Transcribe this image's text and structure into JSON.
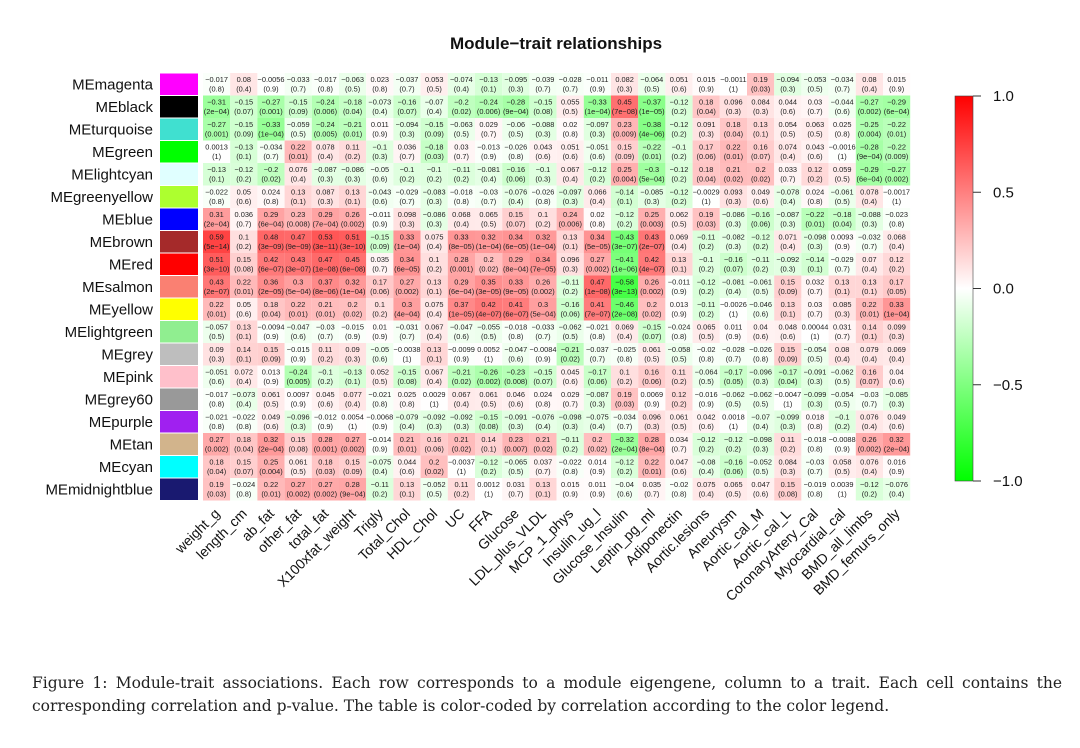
{
  "chart_data": {
    "type": "heatmap",
    "title": "Module−trait relationships",
    "rows": [
      "MEmagenta",
      "MEblack",
      "MEturquoise",
      "MEgreen",
      "MElightcyan",
      "MEgreenyellow",
      "MEblue",
      "MEbrown",
      "MEred",
      "MEsalmon",
      "MEyellow",
      "MElightgreen",
      "MEgrey",
      "MEpink",
      "MEgrey60",
      "MEpurple",
      "MEtan",
      "MEcyan",
      "MEmidnightblue"
    ],
    "row_colors": [
      "#ff00ff",
      "#000000",
      "#40e0d0",
      "#00ff00",
      "#e0ffff",
      "#adff2f",
      "#0000ff",
      "#a52a2a",
      "#ff0000",
      "#fa8072",
      "#ffff00",
      "#90ee90",
      "#bebebe",
      "#ffc0cb",
      "#999999",
      "#a020f0",
      "#d2b48c",
      "#00ffff",
      "#191970"
    ],
    "columns": [
      "weight_g",
      "length_cm",
      "ab_fat",
      "other_fat",
      "total_fat",
      "X100xfat_weight",
      "Trigly",
      "Total_Chol",
      "HDL_Chol",
      "UC",
      "FFA",
      "Glucose",
      "LDL_plus_VLDL",
      "MCP_1_phys",
      "Insulin_ug_l",
      "Glucose_Insulin",
      "Leptin_pg_ml",
      "Adiponectin",
      "Aortic.lesions",
      "Aneurysm",
      "Aortic_cal_M",
      "Aortic_cal_L",
      "CoronaryArtery_Cal",
      "Myocardial_cal",
      "BMD_all_limbs",
      "BMD_femurs_only"
    ],
    "correlations": [
      [
        "-0.017",
        "0.08",
        "-0.0056",
        "-0.033",
        "-0.017",
        "-0.063",
        "0.023",
        "-0.037",
        "0.053",
        "-0.074",
        "-0.13",
        "-0.095",
        "-0.039",
        "-0.028",
        "-0.011",
        "0.082",
        "-0.064",
        "0.051",
        "0.015",
        "-0.0011",
        "0.19",
        "-0.094",
        "-0.053",
        "-0.034",
        "0.08",
        "0.015"
      ],
      [
        "-0.31",
        "-0.15",
        "-0.27",
        "-0.15",
        "-0.24",
        "-0.18",
        "-0.073",
        "-0.16",
        "-0.07",
        "-0.2",
        "-0.24",
        "-0.28",
        "-0.15",
        "0.055",
        "-0.33",
        "0.45",
        "-0.37",
        "-0.12",
        "0.18",
        "0.096",
        "0.084",
        "0.044",
        "0.03",
        "-0.044",
        "-0.27",
        "-0.29"
      ],
      [
        "-0.27",
        "-0.15",
        "-0.33",
        "-0.059",
        "-0.24",
        "-0.21",
        "0.011",
        "-0.094",
        "-0.15",
        "-0.063",
        "0.029",
        "-0.06",
        "-0.088",
        "0.02",
        "-0.097",
        "0.23",
        "-0.38",
        "-0.12",
        "0.091",
        "0.18",
        "0.13",
        "0.054",
        "0.063",
        "0.025",
        "-0.25",
        "-0.22"
      ],
      [
        "0.0013",
        "-0.13",
        "-0.034",
        "0.22",
        "0.078",
        "0.11",
        "-0.1",
        "0.036",
        "-0.18",
        "0.03",
        "-0.013",
        "-0.026",
        "0.043",
        "0.051",
        "-0.051",
        "0.15",
        "-0.22",
        "-0.1",
        "0.17",
        "0.22",
        "0.16",
        "0.074",
        "0.043",
        "-0.0016",
        "-0.28",
        "-0.22"
      ],
      [
        "-0.13",
        "-0.12",
        "-0.2",
        "0.076",
        "-0.087",
        "-0.086",
        "-0.05",
        "-0.1",
        "-0.1",
        "-0.11",
        "-0.081",
        "-0.16",
        "-0.1",
        "0.067",
        "-0.12",
        "0.25",
        "-0.3",
        "-0.12",
        "0.18",
        "0.21",
        "0.2",
        "0.033",
        "0.12",
        "0.059",
        "-0.29",
        "-0.27"
      ],
      [
        "-0.022",
        "0.05",
        "0.024",
        "0.13",
        "0.087",
        "0.13",
        "-0.043",
        "-0.029",
        "-0.083",
        "-0.018",
        "-0.03",
        "-0.076",
        "-0.026",
        "-0.097",
        "0.066",
        "-0.14",
        "-0.085",
        "-0.12",
        "-0.0029",
        "0.093",
        "0.049",
        "-0.078",
        "0.024",
        "-0.061",
        "0.078",
        "-0.0017"
      ],
      [
        "0.31",
        "0.036",
        "0.29",
        "0.23",
        "0.29",
        "0.26",
        "-0.011",
        "0.098",
        "-0.086",
        "0.068",
        "0.065",
        "0.15",
        "0.1",
        "0.24",
        "0.02",
        "-0.12",
        "0.25",
        "0.062",
        "0.19",
        "-0.086",
        "-0.16",
        "-0.087",
        "-0.22",
        "-0.18",
        "-0.088",
        "-0.023"
      ],
      [
        "0.59",
        "0.1",
        "0.48",
        "0.47",
        "0.53",
        "0.51",
        "-0.15",
        "0.33",
        "0.075",
        "0.33",
        "0.32",
        "0.34",
        "0.32",
        "0.13",
        "0.34",
        "-0.43",
        "0.43",
        "0.069",
        "-0.11",
        "-0.082",
        "-0.12",
        "0.071",
        "-0.098",
        "0.0093",
        "-0.032",
        "0.068"
      ],
      [
        "0.51",
        "0.15",
        "0.42",
        "0.43",
        "0.47",
        "0.45",
        "0.035",
        "0.34",
        "0.1",
        "0.28",
        "0.2",
        "0.29",
        "0.34",
        "0.096",
        "0.27",
        "-0.41",
        "0.42",
        "0.13",
        "-0.1",
        "-0.16",
        "-0.11",
        "-0.092",
        "-0.14",
        "-0.029",
        "0.07",
        "0.12"
      ],
      [
        "0.43",
        "0.22",
        "0.36",
        "0.3",
        "0.37",
        "0.32",
        "0.17",
        "0.27",
        "0.13",
        "0.29",
        "0.35",
        "0.33",
        "0.26",
        "-0.11",
        "0.47",
        "-0.58",
        "0.26",
        "-0.011",
        "-0.12",
        "-0.081",
        "-0.061",
        "0.15",
        "0.032",
        "0.13",
        "0.13",
        "0.17"
      ],
      [
        "0.22",
        "0.05",
        "0.18",
        "0.22",
        "0.21",
        "0.2",
        "0.1",
        "0.3",
        "0.075",
        "0.37",
        "0.42",
        "0.41",
        "0.3",
        "-0.16",
        "0.41",
        "-0.46",
        "0.2",
        "0.013",
        "-0.11",
        "-0.0026",
        "-0.046",
        "0.13",
        "0.03",
        "0.085",
        "0.22",
        "0.33"
      ],
      [
        "-0.057",
        "0.13",
        "-0.0094",
        "-0.047",
        "-0.03",
        "-0.015",
        "0.01",
        "-0.031",
        "0.067",
        "-0.047",
        "-0.055",
        "-0.018",
        "-0.033",
        "-0.062",
        "-0.021",
        "0.069",
        "-0.15",
        "-0.024",
        "0.065",
        "0.011",
        "0.04",
        "0.048",
        "0.00044",
        "0.031",
        "0.14",
        "0.099"
      ],
      [
        "0.09",
        "0.14",
        "0.15",
        "-0.015",
        "0.11",
        "0.09",
        "-0.05",
        "-0.0038",
        "0.13",
        "-0.0099",
        "0.0052",
        "-0.047",
        "-0.0084",
        "-0.21",
        "-0.037",
        "-0.025",
        "0.061",
        "-0.058",
        "-0.02",
        "-0.028",
        "-0.026",
        "0.15",
        "-0.054",
        "0.08",
        "0.079",
        "0.069"
      ],
      [
        "-0.051",
        "0.072",
        "0.013",
        "-0.24",
        "-0.1",
        "-0.13",
        "0.052",
        "-0.15",
        "0.067",
        "-0.21",
        "-0.26",
        "-0.23",
        "-0.15",
        "0.045",
        "-0.17",
        "0.1",
        "0.16",
        "0.11",
        "-0.064",
        "-0.17",
        "-0.096",
        "-0.17",
        "-0.091",
        "-0.062",
        "0.16",
        "0.04"
      ],
      [
        "-0.017",
        "-0.073",
        "0.061",
        "0.0097",
        "0.045",
        "0.077",
        "-0.021",
        "0.025",
        "0.0029",
        "0.067",
        "0.061",
        "0.046",
        "0.024",
        "0.029",
        "-0.087",
        "0.19",
        "0.0069",
        "0.12",
        "-0.016",
        "-0.062",
        "-0.062",
        "-0.0047",
        "-0.099",
        "-0.054",
        "-0.03",
        "-0.085"
      ],
      [
        "-0.021",
        "-0.022",
        "0.049",
        "-0.096",
        "-0.012",
        "0.0054",
        "-0.0068",
        "-0.079",
        "-0.092",
        "-0.092",
        "-0.15",
        "-0.091",
        "-0.076",
        "-0.098",
        "-0.075",
        "-0.034",
        "0.096",
        "0.061",
        "0.042",
        "0.0018",
        "-0.07",
        "-0.099",
        "0.018",
        "-0.1",
        "0.076",
        "0.049"
      ],
      [
        "0.27",
        "0.18",
        "0.32",
        "0.15",
        "0.28",
        "0.27",
        "-0.014",
        "0.21",
        "0.16",
        "0.21",
        "0.14",
        "0.23",
        "0.21",
        "-0.11",
        "0.2",
        "-0.32",
        "0.28",
        "0.034",
        "-0.12",
        "-0.12",
        "-0.098",
        "0.11",
        "-0.018",
        "-0.0088",
        "0.26",
        "0.32"
      ],
      [
        "0.18",
        "0.15",
        "0.25",
        "0.061",
        "0.18",
        "0.15",
        "-0.075",
        "0.044",
        "0.2",
        "-0.0037",
        "-0.12",
        "-0.065",
        "0.037",
        "-0.022",
        "0.014",
        "-0.12",
        "0.22",
        "0.047",
        "-0.08",
        "-0.16",
        "-0.052",
        "0.084",
        "-0.03",
        "0.058",
        "0.076",
        "0.016"
      ],
      [
        "0.19",
        "-0.024",
        "0.22",
        "0.27",
        "0.27",
        "0.28",
        "-0.11",
        "0.13",
        "-0.052",
        "0.11",
        "0.0012",
        "0.031",
        "0.13",
        "0.015",
        "0.011",
        "-0.04",
        "0.035",
        "-0.02",
        "0.075",
        "0.065",
        "0.047",
        "0.15",
        "-0.019",
        "0.0039",
        "-0.12",
        "-0.076"
      ]
    ],
    "pvalues": [
      [
        "(0.8)",
        "(0.4)",
        "(0.9)",
        "(0.7)",
        "(0.8)",
        "(0.5)",
        "(0.8)",
        "(0.7)",
        "(0.5)",
        "(0.4)",
        "(0.1)",
        "(0.3)",
        "(0.7)",
        "(0.7)",
        "(0.9)",
        "(0.3)",
        "(0.5)",
        "(0.6)",
        "(0.9)",
        "(1)",
        "(0.03)",
        "(0.3)",
        "(0.5)",
        "(0.7)",
        "(0.4)",
        "(0.9)"
      ],
      [
        "(2e-04)",
        "(0.07)",
        "(0.001)",
        "(0.09)",
        "(0.006)",
        "(0.04)",
        "(0.4)",
        "(0.07)",
        "(0.4)",
        "(0.02)",
        "(0.006)",
        "(9e-04)",
        "(0.08)",
        "(0.5)",
        "(1e-04)",
        "(7e-08)",
        "(1e-05)",
        "(0.2)",
        "(0.04)",
        "(0.3)",
        "(0.3)",
        "(0.6)",
        "(0.7)",
        "(0.6)",
        "(0.002)",
        "(6e-04)"
      ],
      [
        "(0.001)",
        "(0.09)",
        "(1e-04)",
        "(0.5)",
        "(0.005)",
        "(0.01)",
        "(0.9)",
        "(0.3)",
        "(0.09)",
        "(0.5)",
        "(0.7)",
        "(0.5)",
        "(0.3)",
        "(0.8)",
        "(0.3)",
        "(0.009)",
        "(4e-06)",
        "(0.2)",
        "(0.3)",
        "(0.04)",
        "(0.1)",
        "(0.5)",
        "(0.5)",
        "(0.8)",
        "(0.004)",
        "(0.01)"
      ],
      [
        "(1)",
        "(0.1)",
        "(0.7)",
        "(0.01)",
        "(0.4)",
        "(0.2)",
        "(0.3)",
        "(0.7)",
        "(0.03)",
        "(0.7)",
        "(0.9)",
        "(0.8)",
        "(0.6)",
        "(0.6)",
        "(0.6)",
        "(0.09)",
        "(0.01)",
        "(0.2)",
        "(0.06)",
        "(0.01)",
        "(0.07)",
        "(0.4)",
        "(0.6)",
        "(1)",
        "(9e-04)",
        "(0.009)"
      ],
      [
        "(0.1)",
        "(0.2)",
        "(0.02)",
        "(0.4)",
        "(0.3)",
        "(0.3)",
        "(0.6)",
        "(0.2)",
        "(0.2)",
        "(0.2)",
        "(0.4)",
        "(0.06)",
        "(0.3)",
        "(0.4)",
        "(0.2)",
        "(0.004)",
        "(5e-04)",
        "(0.2)",
        "(0.04)",
        "(0.02)",
        "(0.02)",
        "(0.7)",
        "(0.2)",
        "(0.5)",
        "(6e-04)",
        "(0.002)"
      ],
      [
        "(0.8)",
        "(0.6)",
        "(0.8)",
        "(0.1)",
        "(0.3)",
        "(0.1)",
        "(0.6)",
        "(0.7)",
        "(0.3)",
        "(0.8)",
        "(0.7)",
        "(0.4)",
        "(0.8)",
        "(0.3)",
        "(0.4)",
        "(0.1)",
        "(0.3)",
        "(0.2)",
        "(1)",
        "(0.3)",
        "(0.6)",
        "(0.4)",
        "(0.8)",
        "(0.5)",
        "(0.4)",
        "(1)"
      ],
      [
        "(2e-04)",
        "(0.7)",
        "(6e-04)",
        "(0.008)",
        "(7e-04)",
        "(0.002)",
        "(0.9)",
        "(0.3)",
        "(0.3)",
        "(0.4)",
        "(0.5)",
        "(0.07)",
        "(0.2)",
        "(0.006)",
        "(0.8)",
        "(0.2)",
        "(0.003)",
        "(0.5)",
        "(0.03)",
        "(0.3)",
        "(0.06)",
        "(0.3)",
        "(0.01)",
        "(0.04)",
        "(0.3)",
        "(0.8)"
      ],
      [
        "(5e-14)",
        "(0.2)",
        "(3e-09)",
        "(9e-09)",
        "(3e-11)",
        "(3e-10)",
        "(0.09)",
        "(1e-04)",
        "(0.4)",
        "(8e-05)",
        "(1e-04)",
        "(6e-05)",
        "(1e-04)",
        "(0.1)",
        "(5e-05)",
        "(3e-07)",
        "(2e-07)",
        "(0.4)",
        "(0.2)",
        "(0.3)",
        "(0.2)",
        "(0.4)",
        "(0.3)",
        "(0.9)",
        "(0.7)",
        "(0.4)"
      ],
      [
        "(3e-10)",
        "(0.08)",
        "(6e-07)",
        "(3e-07)",
        "(1e-08)",
        "(6e-08)",
        "(0.7)",
        "(6e-05)",
        "(0.2)",
        "(0.001)",
        "(0.02)",
        "(8e-04)",
        "(7e-05)",
        "(0.3)",
        "(0.002)",
        "(1e-06)",
        "(4e-07)",
        "(0.1)",
        "(0.2)",
        "(0.07)",
        "(0.2)",
        "(0.3)",
        "(0.1)",
        "(0.7)",
        "(0.4)",
        "(0.2)"
      ],
      [
        "(2e-07)",
        "(0.01)",
        "(2e-05)",
        "(5e-04)",
        "(8e-06)",
        "(1e-04)",
        "(0.06)",
        "(0.002)",
        "(0.1)",
        "(6e-04)",
        "(3e-05)",
        "(9e-05)",
        "(0.002)",
        "(0.2)",
        "(1e-08)",
        "(3e-13)",
        "(0.002)",
        "(0.9)",
        "(0.2)",
        "(0.4)",
        "(0.5)",
        "(0.09)",
        "(0.7)",
        "(0.1)",
        "(0.1)",
        "(0.05)"
      ],
      [
        "(0.01)",
        "(0.6)",
        "(0.04)",
        "(0.01)",
        "(0.01)",
        "(0.02)",
        "(0.2)",
        "(4e-04)",
        "(0.4)",
        "(1e-05)",
        "(4e-07)",
        "(6e-07)",
        "(5e-04)",
        "(0.06)",
        "(7e-07)",
        "(2e-08)",
        "(0.02)",
        "(0.9)",
        "(0.2)",
        "(1)",
        "(0.6)",
        "(0.1)",
        "(0.7)",
        "(0.3)",
        "(0.01)",
        "(1e-04)"
      ],
      [
        "(0.5)",
        "(0.1)",
        "(0.9)",
        "(0.6)",
        "(0.7)",
        "(0.9)",
        "(0.9)",
        "(0.7)",
        "(0.4)",
        "(0.6)",
        "(0.5)",
        "(0.8)",
        "(0.7)",
        "(0.5)",
        "(0.8)",
        "(0.4)",
        "(0.07)",
        "(0.8)",
        "(0.5)",
        "(0.9)",
        "(0.6)",
        "(0.6)",
        "(1)",
        "(0.7)",
        "(0.1)",
        "(0.3)"
      ],
      [
        "(0.3)",
        "(0.1)",
        "(0.09)",
        "(0.9)",
        "(0.2)",
        "(0.3)",
        "(0.6)",
        "(1)",
        "(0.1)",
        "(0.9)",
        "(1)",
        "(0.6)",
        "(0.9)",
        "(0.02)",
        "(0.7)",
        "(0.8)",
        "(0.5)",
        "(0.5)",
        "(0.8)",
        "(0.7)",
        "(0.8)",
        "(0.09)",
        "(0.5)",
        "(0.4)",
        "(0.4)",
        "(0.4)"
      ],
      [
        "(0.6)",
        "(0.4)",
        "(0.9)",
        "(0.005)",
        "(0.2)",
        "(0.1)",
        "(0.5)",
        "(0.08)",
        "(0.4)",
        "(0.02)",
        "(0.002)",
        "(0.008)",
        "(0.07)",
        "(0.6)",
        "(0.06)",
        "(0.2)",
        "(0.06)",
        "(0.2)",
        "(0.5)",
        "(0.05)",
        "(0.3)",
        "(0.04)",
        "(0.3)",
        "(0.5)",
        "(0.07)",
        "(0.6)"
      ],
      [
        "(0.8)",
        "(0.4)",
        "(0.5)",
        "(0.9)",
        "(0.6)",
        "(0.4)",
        "(0.8)",
        "(0.8)",
        "(1)",
        "(0.4)",
        "(0.5)",
        "(0.6)",
        "(0.8)",
        "(0.7)",
        "(0.3)",
        "(0.03)",
        "(0.9)",
        "(0.2)",
        "(0.9)",
        "(0.5)",
        "(0.5)",
        "(1)",
        "(0.3)",
        "(0.5)",
        "(0.7)",
        "(0.3)"
      ],
      [
        "(0.8)",
        "(0.8)",
        "(0.6)",
        "(0.3)",
        "(0.9)",
        "(1)",
        "(0.9)",
        "(0.4)",
        "(0.3)",
        "(0.3)",
        "(0.08)",
        "(0.3)",
        "(0.4)",
        "(0.3)",
        "(0.4)",
        "(0.7)",
        "(0.3)",
        "(0.5)",
        "(0.6)",
        "(1)",
        "(0.4)",
        "(0.3)",
        "(0.8)",
        "(0.2)",
        "(0.4)",
        "(0.6)"
      ],
      [
        "(0.002)",
        "(0.04)",
        "(2e-04)",
        "(0.08)",
        "(0.001)",
        "(0.002)",
        "(0.9)",
        "(0.01)",
        "(0.06)",
        "(0.02)",
        "(0.1)",
        "(0.007)",
        "(0.02)",
        "(0.2)",
        "(0.02)",
        "(2e-04)",
        "(8e-04)",
        "(0.7)",
        "(0.2)",
        "(0.2)",
        "(0.3)",
        "(0.2)",
        "(0.8)",
        "(0.9)",
        "(0.002)",
        "(2e-04)"
      ],
      [
        "(0.04)",
        "(0.07)",
        "(0.004)",
        "(0.5)",
        "(0.03)",
        "(0.09)",
        "(0.4)",
        "(0.6)",
        "(0.02)",
        "(1)",
        "(0.2)",
        "(0.5)",
        "(0.7)",
        "(0.8)",
        "(0.9)",
        "(0.2)",
        "(0.01)",
        "(0.6)",
        "(0.4)",
        "(0.06)",
        "(0.5)",
        "(0.3)",
        "(0.7)",
        "(0.5)",
        "(0.4)",
        "(0.9)"
      ],
      [
        "(0.03)",
        "(0.8)",
        "(0.01)",
        "(0.002)",
        "(0.002)",
        "(9e-04)",
        "(0.2)",
        "(0.1)",
        "(0.5)",
        "(0.2)",
        "(1)",
        "(0.7)",
        "(0.1)",
        "(0.9)",
        "(0.9)",
        "(0.6)",
        "(0.7)",
        "(0.8)",
        "(0.4)",
        "(0.5)",
        "(0.6)",
        "(0.08)",
        "(0.8)",
        "(1)",
        "(0.2)",
        "(0.4)"
      ]
    ],
    "colorscale": {
      "min": -1.0,
      "max": 1.0,
      "low_color": "#00ff00",
      "mid_color": "#ffffff",
      "high_color": "#ff0000"
    },
    "legend_ticks": [
      "1.0",
      "0.5",
      "0.0",
      "−0.5",
      "−1.0"
    ],
    "legend_tick_values": [
      1.0,
      0.5,
      0.0,
      -0.5,
      -1.0
    ],
    "legend_position": "right",
    "xlabel": "",
    "ylabel": ""
  },
  "caption": "Figure 1: Module-trait associations. Each row corresponds to a module eigengene, column to a trait. Each cell contains the corresponding correlation and p-value. The table is color-coded by correlation according to the color legend."
}
